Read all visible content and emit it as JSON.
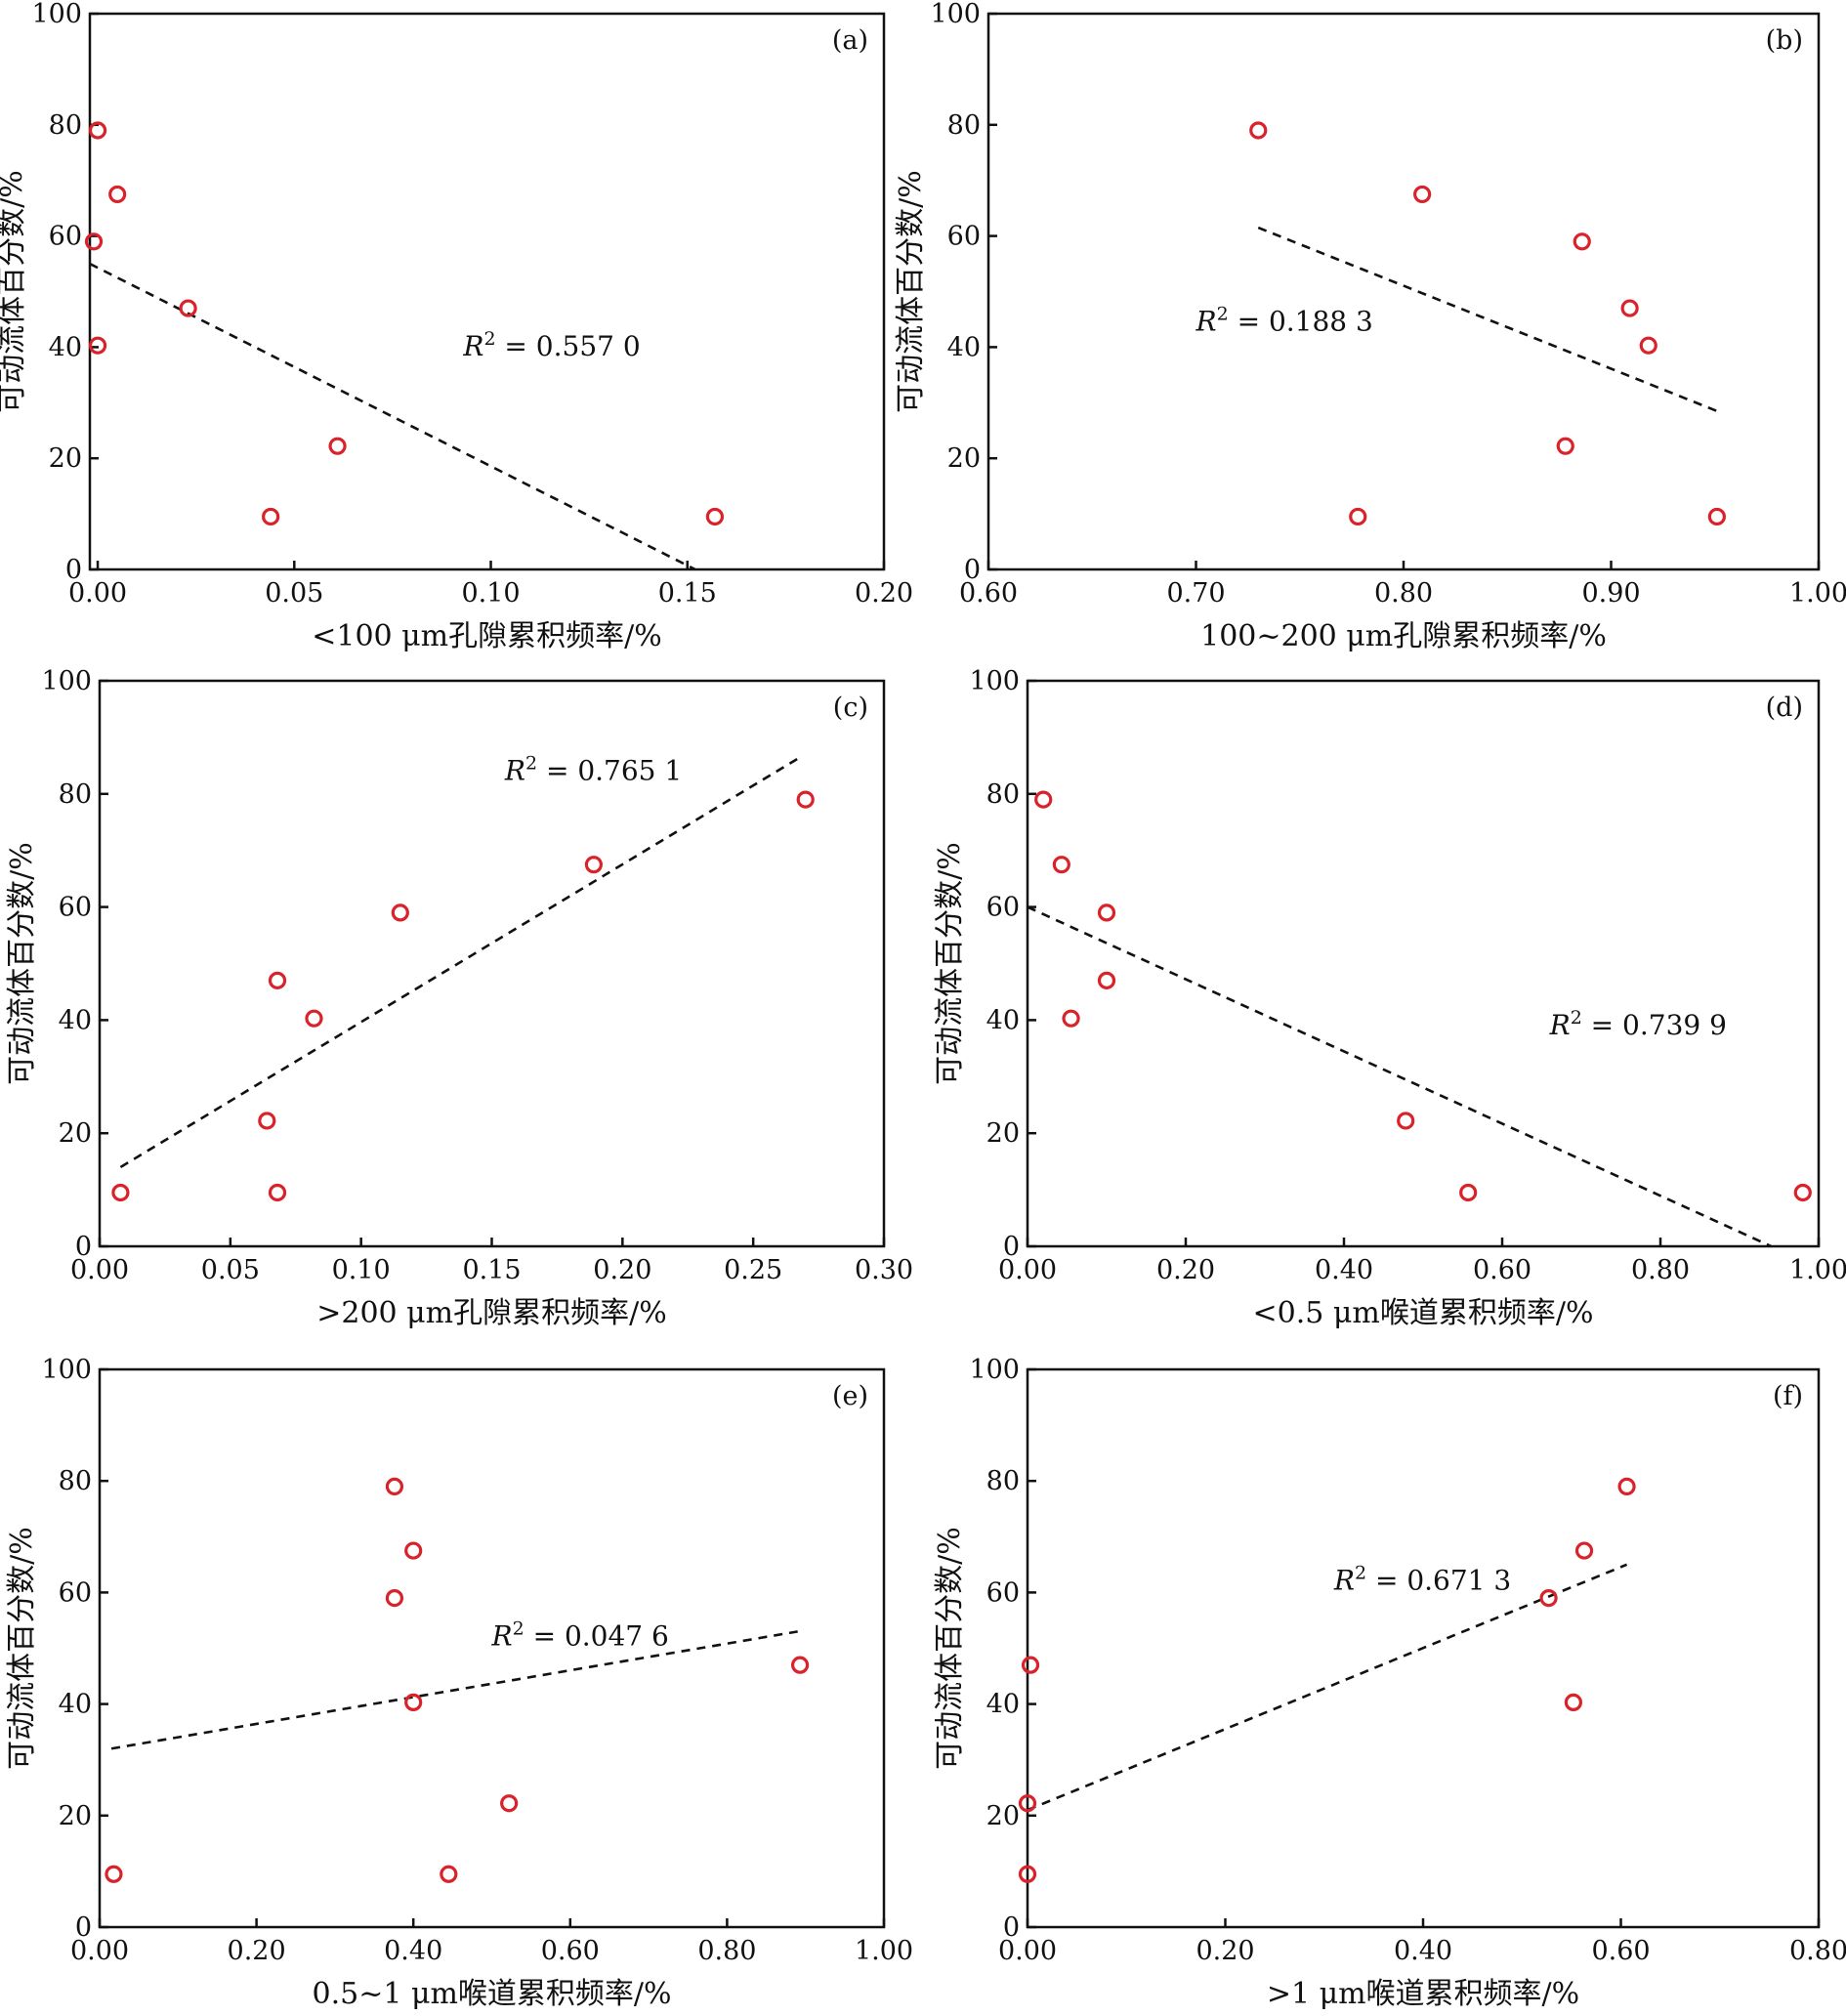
{
  "figure": {
    "colors": {
      "marker": "#d9222a",
      "axis": "#111111",
      "trendline": "#111111"
    },
    "marker_icon": "open-circle"
  },
  "chart_data": [
    {
      "panel": "(a)",
      "type": "scatter",
      "xlabel": "<100 μm孔隙累积频率/%",
      "ylabel": "可动流体百分数/%",
      "xlim": [
        -0.002,
        0.2
      ],
      "ylim": [
        0,
        100
      ],
      "xticks": [
        0.0,
        0.05,
        0.1,
        0.15,
        0.2
      ],
      "xtick_labels": [
        "0.00",
        "0.05",
        "0.10",
        "0.15",
        "0.20"
      ],
      "yticks": [
        0,
        20,
        40,
        60,
        80,
        100
      ],
      "ytick_labels": [
        "0",
        "20",
        "40",
        "60",
        "80",
        "100"
      ],
      "points": {
        "x": [
          0.0,
          0.005,
          -0.001,
          0.023,
          0.0,
          0.061,
          0.044,
          0.157
        ],
        "y": [
          79,
          67.5,
          59,
          47,
          40.3,
          22.2,
          9.5,
          9.5
        ]
      },
      "trendline": {
        "x": [
          -0.002,
          0.152
        ],
        "y": [
          55,
          0
        ]
      },
      "r2_label": {
        "var": "R",
        "sup": "2",
        "eq": " = 0.557 0"
      },
      "r2_anchor": [
        0.093,
        38.5
      ],
      "grid": false
    },
    {
      "panel": "(b)",
      "type": "scatter",
      "xlabel": "100~200 μm孔隙累积频率/%",
      "ylabel": "可动流体百分数/%",
      "xlim": [
        0.6,
        1.0
      ],
      "ylim": [
        0,
        100
      ],
      "xticks": [
        0.6,
        0.7,
        0.8,
        0.9,
        1.0
      ],
      "xtick_labels": [
        "0.60",
        "0.70",
        "0.80",
        "0.90",
        "1.00"
      ],
      "yticks": [
        0,
        20,
        40,
        60,
        80,
        100
      ],
      "ytick_labels": [
        "0",
        "20",
        "40",
        "60",
        "80",
        "100"
      ],
      "points": {
        "x": [
          0.73,
          0.809,
          0.886,
          0.909,
          0.918,
          0.878,
          0.778,
          0.951
        ],
        "y": [
          79,
          67.5,
          59,
          47,
          40.3,
          22.2,
          9.5,
          9.5
        ]
      },
      "trendline": {
        "x": [
          0.73,
          0.951
        ],
        "y": [
          61.5,
          28.5
        ]
      },
      "r2_label": {
        "var": "R",
        "sup": "2",
        "eq": " = 0.188 3"
      },
      "r2_anchor": [
        0.7,
        43
      ],
      "grid": false
    },
    {
      "panel": "(c)",
      "type": "scatter",
      "xlabel": ">200 μm孔隙累积频率/%",
      "ylabel": "可动流体百分数/%",
      "xlim": [
        0.0,
        0.3
      ],
      "ylim": [
        0,
        100
      ],
      "xticks": [
        0.0,
        0.05,
        0.1,
        0.15,
        0.2,
        0.25,
        0.3
      ],
      "xtick_labels": [
        "0.00",
        "0.05",
        "0.10",
        "0.15",
        "0.20",
        "0.25",
        "0.30"
      ],
      "yticks": [
        0,
        20,
        40,
        60,
        80,
        100
      ],
      "ytick_labels": [
        "0",
        "20",
        "40",
        "60",
        "80",
        "100"
      ],
      "points": {
        "x": [
          0.27,
          0.189,
          0.115,
          0.068,
          0.082,
          0.064,
          0.008,
          0.068
        ],
        "y": [
          79,
          67.5,
          59,
          47,
          40.3,
          22.2,
          9.5,
          9.5
        ]
      },
      "trendline": {
        "x": [
          0.008,
          0.268
        ],
        "y": [
          14,
          86.5
        ]
      },
      "r2_label": {
        "var": "R",
        "sup": "2",
        "eq": " = 0.765 1"
      },
      "r2_anchor": [
        0.155,
        82.5
      ],
      "grid": false
    },
    {
      "panel": "(d)",
      "type": "scatter",
      "xlabel": "<0.5 μm喉道累积频率/%",
      "ylabel": "可动流体百分数/%",
      "xlim": [
        0.0,
        1.0
      ],
      "ylim": [
        0,
        100
      ],
      "xticks": [
        0.0,
        0.2,
        0.4,
        0.6,
        0.8,
        1.0
      ],
      "xtick_labels": [
        "0.00",
        "0.20",
        "0.40",
        "0.60",
        "0.80",
        "1.00"
      ],
      "yticks": [
        0,
        20,
        40,
        60,
        80,
        100
      ],
      "ytick_labels": [
        "0",
        "20",
        "40",
        "60",
        "80",
        "100"
      ],
      "points": {
        "x": [
          0.02,
          0.043,
          0.1,
          0.1,
          0.055,
          0.478,
          0.557,
          0.98
        ],
        "y": [
          79,
          67.5,
          59,
          47,
          40.3,
          22.2,
          9.5,
          9.5
        ]
      },
      "trendline": {
        "x": [
          0.0,
          0.94
        ],
        "y": [
          60,
          0
        ]
      },
      "r2_label": {
        "var": "R",
        "sup": "2",
        "eq": " = 0.739 9"
      },
      "r2_anchor": [
        0.66,
        37.5
      ],
      "grid": false
    },
    {
      "panel": "(e)",
      "type": "scatter",
      "xlabel": "0.5~1 μm喉道累积频率/%",
      "ylabel": "可动流体百分数/%",
      "xlim": [
        0.0,
        1.0
      ],
      "ylim": [
        0,
        100
      ],
      "xticks": [
        0.0,
        0.2,
        0.4,
        0.6,
        0.8,
        1.0
      ],
      "xtick_labels": [
        "0.00",
        "0.20",
        "0.40",
        "0.60",
        "0.80",
        "1.00"
      ],
      "yticks": [
        0,
        20,
        40,
        60,
        80,
        100
      ],
      "ytick_labels": [
        "0",
        "20",
        "40",
        "60",
        "80",
        "100"
      ],
      "points": {
        "x": [
          0.376,
          0.4,
          0.376,
          0.893,
          0.4,
          0.522,
          0.445,
          0.018
        ],
        "y": [
          79,
          67.5,
          59,
          47,
          40.3,
          22.2,
          9.5,
          9.5
        ]
      },
      "trendline": {
        "x": [
          0.015,
          0.89
        ],
        "y": [
          32,
          53
        ]
      },
      "r2_label": {
        "var": "R",
        "sup": "2",
        "eq": " = 0.047 6"
      },
      "r2_anchor": [
        0.5,
        50.5
      ],
      "grid": false
    },
    {
      "panel": "(f)",
      "type": "scatter",
      "xlabel": ">1 μm喉道累积频率/%",
      "ylabel": "可动流体百分数/%",
      "xlim": [
        0.0,
        0.8
      ],
      "ylim": [
        0,
        100
      ],
      "xticks": [
        0.0,
        0.2,
        0.4,
        0.6,
        0.8
      ],
      "xtick_labels": [
        "0.00",
        "0.20",
        "0.40",
        "0.60",
        "0.80"
      ],
      "yticks": [
        0,
        20,
        40,
        60,
        80,
        100
      ],
      "ytick_labels": [
        "0",
        "20",
        "40",
        "60",
        "80",
        "100"
      ],
      "points": {
        "x": [
          0.606,
          0.563,
          0.527,
          0.003,
          0.552,
          0.0,
          0.0
        ],
        "y": [
          79,
          67.5,
          59,
          47,
          40.3,
          22.2,
          9.5
        ]
      },
      "trendline": {
        "x": [
          0.0,
          0.606
        ],
        "y": [
          21,
          65
        ]
      },
      "r2_label": {
        "var": "R",
        "sup": "2",
        "eq": " = 0.671 3"
      },
      "r2_anchor": [
        0.31,
        60.5
      ],
      "grid": false
    }
  ]
}
